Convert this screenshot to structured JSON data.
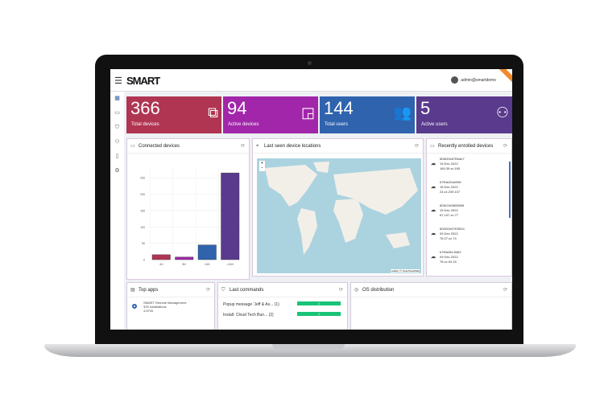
{
  "header": {
    "menu_icon": "hamburger-icon",
    "logo": "SMART",
    "user": "admin@smartdemo"
  },
  "sidebar": {
    "items": [
      "dashboard-icon",
      "devices-icon",
      "shield-icon",
      "users-icon",
      "clipboard-icon",
      "gear-icon"
    ]
  },
  "tiles": [
    {
      "value": "366",
      "label": "Total devices",
      "icon": "devices-icon",
      "color": "#b03552"
    },
    {
      "value": "94",
      "label": "Active devices",
      "icon": "cast-icon",
      "color": "#a226aa"
    },
    {
      "value": "144",
      "label": "Total users",
      "icon": "users-icon",
      "color": "#2f63ae"
    },
    {
      "value": "5",
      "label": "Active users",
      "icon": "users-outline-icon",
      "color": "#5a3a8c"
    }
  ],
  "connected": {
    "title": "Connected devices"
  },
  "map": {
    "title": "Last seen device locations",
    "attribution": "Leaflet | © OpenStreetMap"
  },
  "recent": {
    "title": "Recently enrolled devices",
    "items": [
      {
        "id": "6D8D0e67B0ae7",
        "date": "15 Dec 2022",
        "ip": "184.39.xx.165"
      },
      {
        "id": "67ff4e20a0096",
        "date": "15 Dec 2022",
        "ip": "24.xx.239.107"
      },
      {
        "id": "6D8C0e0808536",
        "date": "15 Dec 2022",
        "ip": "67.197.xx.77"
      },
      {
        "id": "6D9D0e07E5524",
        "date": "09 Dec 2022",
        "ip": "76.27.xx.74"
      },
      {
        "id": "67ff4e9bL5482",
        "date": "09 Dec 2022",
        "ip": "76.xx.94.15"
      }
    ]
  },
  "top_apps": {
    "title": "Top apps",
    "items": [
      {
        "name": "SMART Remote Management",
        "installs": "325 installations",
        "version": "4.8700"
      }
    ]
  },
  "last_commands": {
    "title": "Last commands",
    "items": [
      {
        "label": "Popup message 'Jeff & As... (1)",
        "count": "1"
      },
      {
        "label": "Install: Cloud Tech Bun... (2)",
        "count": "1"
      }
    ]
  },
  "os": {
    "title": "OS distribution"
  },
  "chart_data": {
    "type": "bar",
    "categories": [
      "4H",
      "8H",
      "24H",
      ">24H"
    ],
    "values": [
      15,
      8,
      45,
      265
    ],
    "ylim": [
      0,
      280
    ],
    "yticks": [
      0,
      50,
      100,
      150,
      200,
      250
    ],
    "colors": [
      "#b03552",
      "#a226aa",
      "#2f63ae",
      "#5a3a8c"
    ],
    "grid": true
  }
}
